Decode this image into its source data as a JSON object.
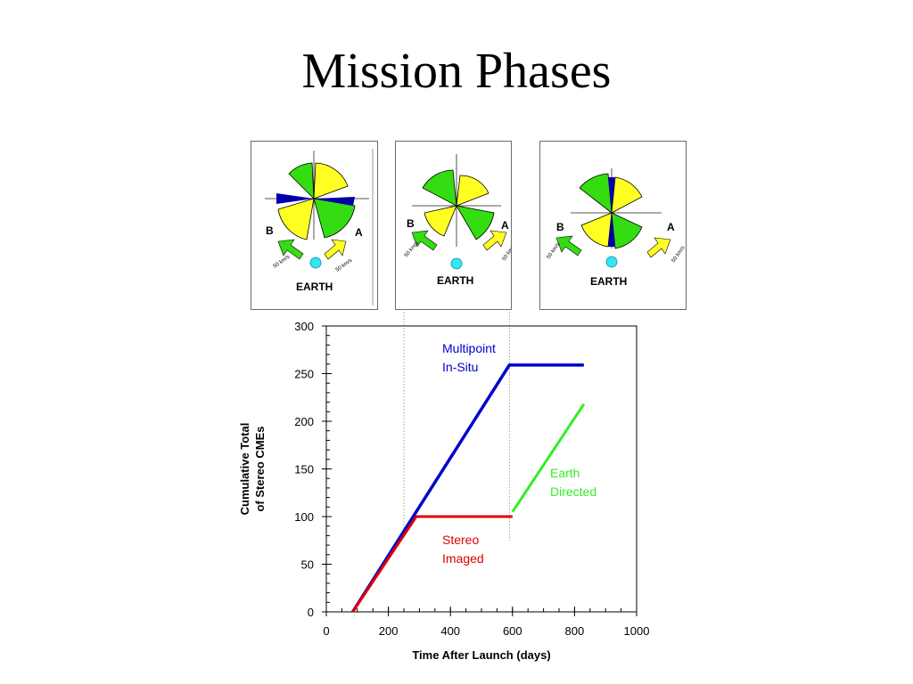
{
  "slide": {
    "title": "Mission Phases"
  },
  "panels": [
    {
      "label_b": "B",
      "label_a": "A",
      "earth_label": "EARTH",
      "vector_label_b": "50 km/s",
      "vector_label_a": "50 km/s"
    },
    {
      "label_b": "B",
      "label_a": "A",
      "earth_label": "EARTH",
      "vector_label_b": "50 km/s",
      "vector_label_a": "50 km/s"
    },
    {
      "label_b": "B",
      "label_a": "A",
      "earth_label": "EARTH",
      "vector_label_b": "50 km/s",
      "vector_label_a": "50 km/s"
    }
  ],
  "colors": {
    "green": "#33dd11",
    "yellow": "#ffff22",
    "blue": "#0000aa",
    "earth": "#33e6f0"
  },
  "chart_data": {
    "type": "line",
    "xlabel": "Time After Launch (days)",
    "ylabel_line1": "Cumulative Total",
    "ylabel_line2": "of Stereo CMEs",
    "xlim": [
      0,
      1000
    ],
    "ylim": [
      0,
      300
    ],
    "xticks": [
      0,
      200,
      400,
      600,
      800,
      1000
    ],
    "yticks": [
      0,
      50,
      100,
      150,
      200,
      250,
      300
    ],
    "phase_markers_x": [
      250,
      590
    ],
    "series": [
      {
        "name_line1": "Multipoint",
        "name_line2": "In-Situ",
        "color": "#0000cc",
        "x": [
          85,
          590,
          830
        ],
        "y": [
          0,
          259,
          259
        ]
      },
      {
        "name_line1": "Stereo",
        "name_line2": "Imaged",
        "color": "#dd0000",
        "x": [
          85,
          290,
          600
        ],
        "y": [
          0,
          100,
          100
        ]
      },
      {
        "name_line1": "Earth",
        "name_line2": "Directed",
        "color": "#33ee22",
        "x": [
          600,
          830
        ],
        "y": [
          105,
          218
        ]
      }
    ]
  }
}
